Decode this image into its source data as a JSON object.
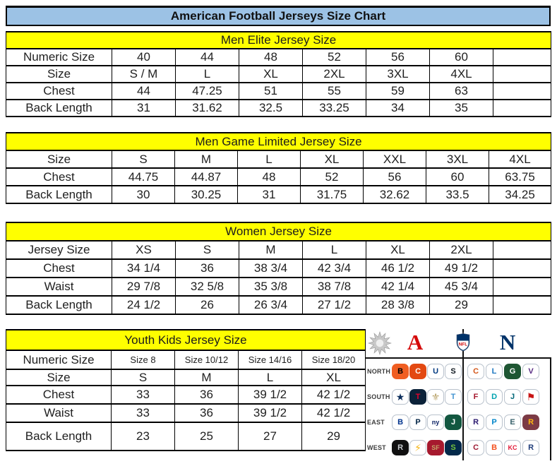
{
  "title": "American Football Jerseys Size Chart",
  "colors": {
    "title_bg": "#9cc2e5",
    "caption_bg": "#ffff00",
    "border": "#000000",
    "afc_red": "#d50a0a",
    "nfc_blue": "#013369"
  },
  "tables": {
    "men_elite": {
      "caption": "Men Elite Jersey Size",
      "rows": [
        {
          "label": "Numeric Size",
          "cells": [
            "40",
            "44",
            "48",
            "52",
            "56",
            "60",
            ""
          ]
        },
        {
          "label": "Size",
          "cells": [
            "S / M",
            "L",
            "XL",
            "2XL",
            "3XL",
            "4XL",
            ""
          ]
        },
        {
          "label": "Chest",
          "cells": [
            "44",
            "47.25",
            "51",
            "55",
            "59",
            "63",
            ""
          ]
        },
        {
          "label": "Back Length",
          "cells": [
            "31",
            "31.62",
            "32.5",
            "33.25",
            "34",
            "35",
            ""
          ]
        }
      ]
    },
    "men_game": {
      "caption": "Men Game Limited Jersey Size",
      "rows": [
        {
          "label": "Size",
          "cells": [
            "S",
            "M",
            "L",
            "XL",
            "XXL",
            "3XL",
            "4XL"
          ]
        },
        {
          "label": "Chest",
          "cells": [
            "44.75",
            "44.87",
            "48",
            "52",
            "56",
            "60",
            "63.75"
          ]
        },
        {
          "label": "Back Length",
          "cells": [
            "30",
            "30.25",
            "31",
            "31.75",
            "32.62",
            "33.5",
            "34.25"
          ]
        }
      ]
    },
    "women": {
      "caption": "Women Jersey Size",
      "rows": [
        {
          "label": "Jersey Size",
          "cells": [
            "XS",
            "S",
            "M",
            "L",
            "XL",
            "2XL",
            ""
          ]
        },
        {
          "label": "Chest",
          "cells": [
            "34 1/4",
            "36",
            "38 3/4",
            "42 3/4",
            "46 1/2",
            "49 1/2",
            ""
          ]
        },
        {
          "label": "Waist",
          "cells": [
            "29 7/8",
            "32 5/8",
            "35 3/8",
            "38 7/8",
            "42 1/4",
            "45 3/4",
            ""
          ]
        },
        {
          "label": "Back Length",
          "cells": [
            "24 1/2",
            "26",
            "26 3/4",
            "27 1/2",
            "28 3/8",
            "29",
            ""
          ]
        }
      ]
    },
    "youth": {
      "caption": "Youth Kids Jersey Size",
      "rows": [
        {
          "label": "Numeric Size",
          "small": true,
          "cells": [
            "Size 8",
            "Size 10/12",
            "Size 14/16",
            "Size 18/20"
          ]
        },
        {
          "label": "Size",
          "cells": [
            "S",
            "M",
            "L",
            "XL"
          ]
        },
        {
          "label": "Chest",
          "cells": [
            "33",
            "36",
            "39 1/2",
            "42 1/2"
          ]
        },
        {
          "label": "Waist",
          "cells": [
            "33",
            "36",
            "39 1/2",
            "42 1/2"
          ]
        },
        {
          "label": "Back Length",
          "cells": [
            "23",
            "25",
            "27",
            "29"
          ]
        }
      ]
    }
  },
  "logo_panel": {
    "afc_glyph": "A",
    "nfc_glyph": "N",
    "shield_label": "NFL",
    "divisions": [
      {
        "label": "NORTH",
        "afc": [
          {
            "team": "bengals",
            "glyph": "B",
            "bg": "#f05e22",
            "fg": "#000000"
          },
          {
            "team": "browns",
            "glyph": "C",
            "bg": "#e34912",
            "fg": "#ffffff"
          },
          {
            "team": "colts",
            "glyph": "U",
            "bg": "#ffffff",
            "fg": "#013a81",
            "bd": "#b9c2cc"
          },
          {
            "team": "steelers",
            "glyph": "S",
            "bg": "#ffffff",
            "fg": "#101820",
            "bd": "#b9c2cc"
          }
        ],
        "nfc": [
          {
            "team": "bears",
            "glyph": "C",
            "bg": "#ffffff",
            "fg": "#d35618",
            "bd": "#b9c2cc"
          },
          {
            "team": "lions",
            "glyph": "L",
            "bg": "#ffffff",
            "fg": "#1b76c0",
            "bd": "#b9c2cc"
          },
          {
            "team": "packers",
            "glyph": "G",
            "bg": "#1e5633",
            "fg": "#ffffff"
          },
          {
            "team": "vikings",
            "glyph": "V",
            "bg": "#ffffff",
            "fg": "#582c83",
            "bd": "#b9c2cc"
          }
        ]
      },
      {
        "label": "SOUTH",
        "afc": [
          {
            "team": "cowboys",
            "glyph": "★",
            "bg": "#ffffff",
            "fg": "#0b2d5b",
            "bd": "#b9c2cc"
          },
          {
            "team": "texans",
            "glyph": "T",
            "bg": "#0b2239",
            "fg": "#e4002b"
          },
          {
            "team": "saints",
            "glyph": "⚜",
            "bg": "#ffffff",
            "fg": "#b8a268",
            "bd": "#b9c2cc"
          },
          {
            "team": "titans",
            "glyph": "T",
            "bg": "#ffffff",
            "fg": "#4495d1",
            "bd": "#b9c2cc"
          }
        ],
        "nfc": [
          {
            "team": "falcons",
            "glyph": "F",
            "bg": "#ffffff",
            "fg": "#a6192e",
            "bd": "#b9c2cc"
          },
          {
            "team": "dolphins",
            "glyph": "D",
            "bg": "#ffffff",
            "fg": "#00a3b0",
            "bd": "#b9c2cc"
          },
          {
            "team": "jaguars",
            "glyph": "J",
            "bg": "#ffffff",
            "fg": "#006778",
            "bd": "#b9c2cc"
          },
          {
            "team": "buccaneers",
            "glyph": "⚑",
            "bg": "#ffffff",
            "fg": "#c81414",
            "bd": "#b9c2cc"
          }
        ]
      },
      {
        "label": "EAST",
        "afc": [
          {
            "team": "bills",
            "glyph": "B",
            "bg": "#ffffff",
            "fg": "#00338d",
            "bd": "#b9c2cc"
          },
          {
            "team": "patriots",
            "glyph": "P",
            "bg": "#ffffff",
            "fg": "#002244",
            "bd": "#b9c2cc"
          },
          {
            "team": "giants",
            "glyph": "ny",
            "bg": "#ffffff",
            "fg": "#0b2265",
            "bd": "#b9c2cc"
          },
          {
            "team": "jets",
            "glyph": "J",
            "bg": "#125740",
            "fg": "#ffffff"
          }
        ],
        "nfc": [
          {
            "team": "ravens",
            "glyph": "R",
            "bg": "#ffffff",
            "fg": "#2b1a70",
            "bd": "#b9c2cc"
          },
          {
            "team": "panthers",
            "glyph": "P",
            "bg": "#ffffff",
            "fg": "#0085ca",
            "bd": "#b9c2cc"
          },
          {
            "team": "eagles",
            "glyph": "E",
            "bg": "#ffffff",
            "fg": "#38616b",
            "bd": "#b9c2cc"
          },
          {
            "team": "redskins",
            "glyph": "R",
            "bg": "#7c3a45",
            "fg": "#ffb612"
          }
        ]
      },
      {
        "label": "WEST",
        "afc": [
          {
            "team": "raiders",
            "glyph": "R",
            "bg": "#101010",
            "fg": "#c9cdd1"
          },
          {
            "team": "chargers",
            "glyph": "⚡",
            "bg": "#ffffff",
            "fg": "#f7b512",
            "bd": "#b9c2cc"
          },
          {
            "team": "49ers",
            "glyph": "SF",
            "bg": "#a6192e",
            "fg": "#c5a368"
          },
          {
            "team": "seahawks",
            "glyph": "S",
            "bg": "#03294a",
            "fg": "#76c23d"
          }
        ],
        "nfc": [
          {
            "team": "cardinals",
            "glyph": "C",
            "bg": "#ffffff",
            "fg": "#9e1b34",
            "bd": "#b9c2cc"
          },
          {
            "team": "broncos",
            "glyph": "B",
            "bg": "#ffffff",
            "fg": "#f4501e",
            "bd": "#b9c2cc"
          },
          {
            "team": "chiefs",
            "glyph": "KC",
            "bg": "#ffffff",
            "fg": "#e31837",
            "bd": "#b9c2cc"
          },
          {
            "team": "rams",
            "glyph": "R",
            "bg": "#ffffff",
            "fg": "#1f3c7a",
            "bd": "#b9c2cc"
          }
        ]
      }
    ]
  }
}
